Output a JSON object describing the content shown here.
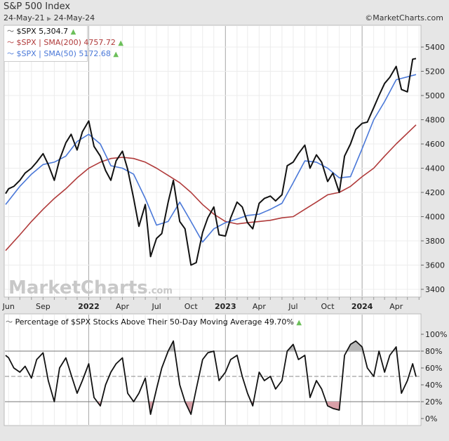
{
  "header": {
    "title": "S&P 500 Index",
    "start_date": "24-May-21",
    "end_date": "24-May-24",
    "source": "©MarketCharts.com",
    "watermark": "MarketCharts.com"
  },
  "colors": {
    "price": "#111111",
    "sma200": "#b03a3a",
    "sma50": "#4a78d8",
    "up_arrow": "#6bbf59",
    "overbought_fill": "#b8b8b8",
    "oversold_fill": "#d9a0a8"
  },
  "chart_data": [
    {
      "type": "line",
      "title": "S&P 500 Index",
      "legend": [
        {
          "label": "$SPX 5,304.7",
          "color": "#111111"
        },
        {
          "label": "$SPX | SMA(200) 4757.72",
          "color": "#b03a3a"
        },
        {
          "label": "$SPX | SMA(50) 5172.68",
          "color": "#4a78d8"
        }
      ],
      "legend_position": "top-left",
      "ylim": [
        3400,
        5400
      ],
      "yticks": [
        "5400",
        "5200",
        "5000",
        "4800",
        "4600",
        "4400",
        "4200",
        "4000",
        "3800",
        "3600",
        "3400"
      ],
      "xticks": [
        {
          "label": "Jun",
          "date": "2021-06-01",
          "major": false
        },
        {
          "label": "Sep",
          "date": "2021-09-01",
          "major": false
        },
        {
          "label": "2022",
          "date": "2022-01-01",
          "major": true
        },
        {
          "label": "Apr",
          "date": "2022-04-01",
          "major": false
        },
        {
          "label": "Jul",
          "date": "2022-07-01",
          "major": false
        },
        {
          "label": "Oct",
          "date": "2022-10-01",
          "major": false
        },
        {
          "label": "2023",
          "date": "2023-01-01",
          "major": true
        },
        {
          "label": "Apr",
          "date": "2023-04-01",
          "major": false
        },
        {
          "label": "Jul",
          "date": "2023-07-01",
          "major": false
        },
        {
          "label": "Oct",
          "date": "2023-10-01",
          "major": false
        },
        {
          "label": "2024",
          "date": "2024-01-01",
          "major": true
        },
        {
          "label": "Apr",
          "date": "2024-04-01",
          "major": false
        }
      ],
      "grid": true,
      "series": [
        {
          "name": "$SPX",
          "x": [
            "2021-05-24",
            "2021-06-01",
            "2021-06-15",
            "2021-07-01",
            "2021-07-15",
            "2021-08-01",
            "2021-08-15",
            "2021-09-01",
            "2021-09-15",
            "2021-10-01",
            "2021-10-15",
            "2021-11-01",
            "2021-11-15",
            "2021-12-01",
            "2021-12-15",
            "2022-01-01",
            "2022-01-15",
            "2022-02-01",
            "2022-02-15",
            "2022-03-01",
            "2022-03-15",
            "2022-04-01",
            "2022-04-15",
            "2022-05-01",
            "2022-05-15",
            "2022-06-01",
            "2022-06-15",
            "2022-07-01",
            "2022-07-15",
            "2022-08-01",
            "2022-08-15",
            "2022-09-01",
            "2022-09-15",
            "2022-10-01",
            "2022-10-15",
            "2022-11-01",
            "2022-11-15",
            "2022-12-01",
            "2022-12-15",
            "2023-01-01",
            "2023-01-15",
            "2023-02-01",
            "2023-02-15",
            "2023-03-01",
            "2023-03-15",
            "2023-04-01",
            "2023-04-15",
            "2023-05-01",
            "2023-05-15",
            "2023-06-01",
            "2023-06-15",
            "2023-07-01",
            "2023-07-15",
            "2023-08-01",
            "2023-08-15",
            "2023-09-01",
            "2023-09-15",
            "2023-10-01",
            "2023-10-15",
            "2023-11-01",
            "2023-11-15",
            "2023-12-01",
            "2023-12-15",
            "2024-01-01",
            "2024-01-15",
            "2024-02-01",
            "2024-02-15",
            "2024-03-01",
            "2024-03-15",
            "2024-04-01",
            "2024-04-15",
            "2024-05-01",
            "2024-05-15",
            "2024-05-24"
          ],
          "values": [
            4190,
            4230,
            4250,
            4300,
            4360,
            4400,
            4450,
            4520,
            4430,
            4300,
            4470,
            4610,
            4680,
            4550,
            4700,
            4790,
            4580,
            4500,
            4380,
            4300,
            4460,
            4540,
            4390,
            4150,
            3920,
            4100,
            3670,
            3820,
            3860,
            4120,
            4300,
            3960,
            3900,
            3600,
            3620,
            3870,
            3990,
            4080,
            3850,
            3840,
            3990,
            4120,
            4080,
            3950,
            3900,
            4110,
            4150,
            4170,
            4130,
            4180,
            4420,
            4450,
            4520,
            4590,
            4400,
            4510,
            4450,
            4290,
            4360,
            4200,
            4500,
            4600,
            4720,
            4770,
            4780,
            4900,
            5000,
            5100,
            5150,
            5240,
            5050,
            5030,
            5300,
            5304.7
          ]
        },
        {
          "name": "SMA(200)",
          "x": [
            "2021-05-24",
            "2021-07-01",
            "2021-08-01",
            "2021-09-01",
            "2021-10-01",
            "2021-11-01",
            "2021-12-01",
            "2022-01-01",
            "2022-02-01",
            "2022-03-01",
            "2022-04-01",
            "2022-05-01",
            "2022-06-01",
            "2022-07-01",
            "2022-08-01",
            "2022-09-01",
            "2022-10-01",
            "2022-11-01",
            "2022-12-01",
            "2023-01-01",
            "2023-02-01",
            "2023-03-01",
            "2023-04-01",
            "2023-05-01",
            "2023-06-01",
            "2023-07-01",
            "2023-08-01",
            "2023-09-01",
            "2023-10-01",
            "2023-11-01",
            "2023-12-01",
            "2024-01-01",
            "2024-02-01",
            "2024-03-01",
            "2024-04-01",
            "2024-05-24"
          ],
          "values": [
            3720,
            3850,
            3960,
            4060,
            4150,
            4230,
            4320,
            4400,
            4450,
            4480,
            4490,
            4480,
            4450,
            4400,
            4340,
            4280,
            4200,
            4100,
            4020,
            3960,
            3940,
            3950,
            3960,
            3970,
            3990,
            4000,
            4060,
            4120,
            4180,
            4200,
            4250,
            4330,
            4400,
            4500,
            4600,
            4757.72
          ]
        },
        {
          "name": "SMA(50)",
          "x": [
            "2021-05-24",
            "2021-07-01",
            "2021-08-01",
            "2021-09-01",
            "2021-10-01",
            "2021-11-01",
            "2021-12-01",
            "2022-01-01",
            "2022-02-01",
            "2022-03-01",
            "2022-04-01",
            "2022-05-01",
            "2022-06-01",
            "2022-07-01",
            "2022-08-01",
            "2022-09-01",
            "2022-10-01",
            "2022-11-01",
            "2022-12-01",
            "2023-01-01",
            "2023-02-01",
            "2023-03-01",
            "2023-04-01",
            "2023-05-01",
            "2023-06-01",
            "2023-07-01",
            "2023-08-01",
            "2023-09-01",
            "2023-10-01",
            "2023-11-01",
            "2023-12-01",
            "2024-01-01",
            "2024-02-01",
            "2024-03-01",
            "2024-04-01",
            "2024-05-24"
          ],
          "values": [
            4100,
            4250,
            4350,
            4430,
            4450,
            4500,
            4620,
            4680,
            4600,
            4420,
            4400,
            4350,
            4150,
            3930,
            3960,
            4120,
            3960,
            3790,
            3900,
            3950,
            3980,
            4010,
            4020,
            4060,
            4110,
            4280,
            4460,
            4450,
            4400,
            4320,
            4330,
            4560,
            4800,
            4950,
            5130,
            5172.68
          ]
        }
      ]
    },
    {
      "type": "line",
      "title": "Percentage of $SPX Stocks Above Their 50-Day Moving Average 49.70%",
      "ylim": [
        0,
        100
      ],
      "yticks": [
        "100%",
        "80%",
        "60%",
        "40%",
        "20%",
        "0%"
      ],
      "reference_lines": [
        80,
        50,
        20
      ],
      "series": [
        {
          "name": "Percentage of $SPX Stocks Above Their 50-Day Moving Average",
          "values": [
            75,
            72,
            60,
            55,
            62,
            48,
            70,
            78,
            45,
            20,
            60,
            72,
            52,
            30,
            45,
            65,
            25,
            15,
            40,
            55,
            65,
            72,
            30,
            20,
            30,
            48,
            5,
            35,
            60,
            80,
            92,
            40,
            20,
            5,
            35,
            70,
            78,
            80,
            45,
            55,
            70,
            75,
            50,
            30,
            15,
            55,
            45,
            50,
            35,
            45,
            80,
            88,
            70,
            75,
            25,
            45,
            35,
            15,
            12,
            10,
            75,
            88,
            92,
            85,
            60,
            50,
            80,
            55,
            75,
            85,
            30,
            45,
            65,
            49.7
          ]
        }
      ]
    }
  ]
}
